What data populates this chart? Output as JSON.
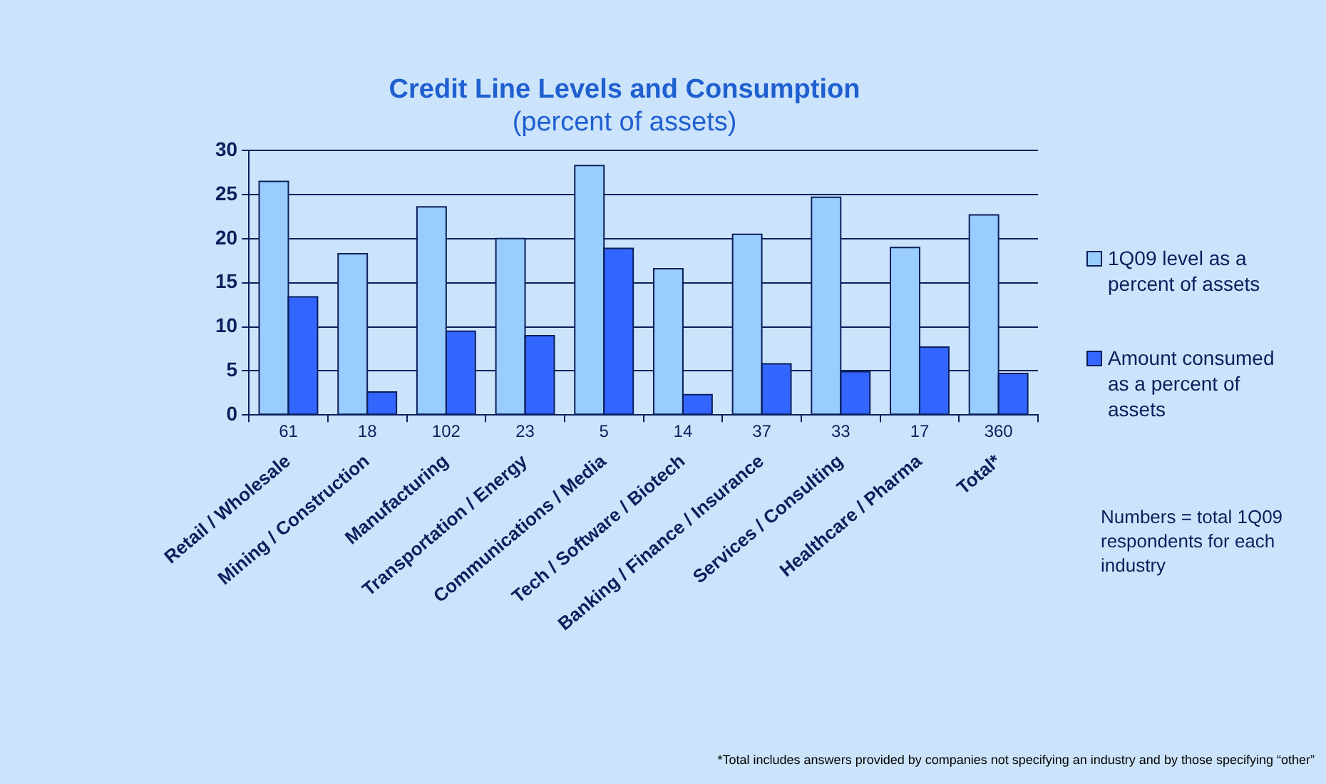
{
  "chart_data": {
    "type": "bar",
    "title": "Credit Line Levels and Consumption",
    "subtitle": "(percent of assets)",
    "categories": [
      "Retail / Wholesale",
      "Mining / Construction",
      "Manufacturing",
      "Transportation / Energy",
      "Communications / Media",
      "Tech / Software / Biotech",
      "Banking / Finance / Insurance",
      "Services / Consulting",
      "Healthcare / Pharma",
      "Total*"
    ],
    "series": [
      {
        "name": "1Q09 level as a percent of assets",
        "color": "#99ccff",
        "values": [
          26.5,
          18.3,
          23.6,
          20.0,
          28.3,
          16.6,
          20.5,
          24.7,
          19.0,
          22.7
        ]
      },
      {
        "name": "Amount consumed as a percent of assets",
        "color": "#3366ff",
        "values": [
          13.4,
          2.6,
          9.5,
          9.0,
          18.9,
          2.3,
          5.8,
          4.9,
          7.7,
          4.7
        ]
      }
    ],
    "ylim": [
      0,
      30
    ],
    "yticks": [
      0,
      5,
      10,
      15,
      20,
      25,
      30
    ],
    "grid": "y",
    "legend": "right",
    "annotations": [
      "61",
      "18",
      "102",
      "23",
      "5",
      "14",
      "37",
      "33",
      "17",
      "360",
      "Numbers = total 1Q09 respondents for each industry",
      "*Total includes answers provided by companies not specifying an industry and by those specifying “other”"
    ]
  }
}
